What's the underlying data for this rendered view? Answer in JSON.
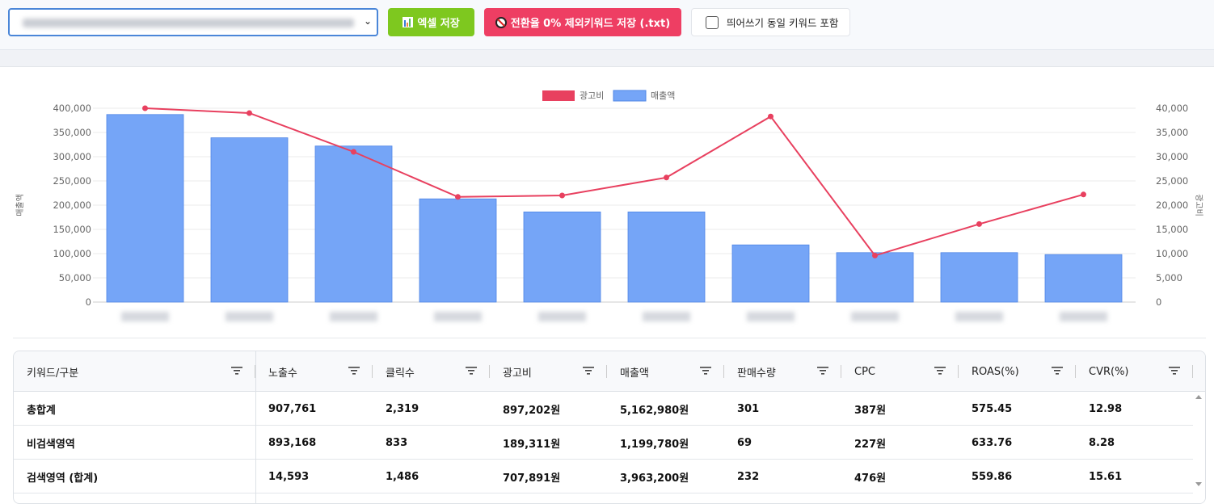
{
  "toolbar": {
    "select_value": "",
    "excel_button": "엑셀 저장",
    "excel_icon": "bar-chart-icon",
    "txt_button": "전환율 0% 제외키워드 저장 (.txt)",
    "txt_icon": "prohibited-icon",
    "checkbox_label": "띄어쓰기 동일 키워드 포함",
    "checkbox_checked": false
  },
  "chart_data": {
    "type": "bar+line",
    "categories": [
      "",
      "",
      "",
      "",
      "",
      "",
      "",
      "",
      "",
      ""
    ],
    "series": [
      {
        "name": "광고비",
        "type": "line",
        "axis": "right",
        "color": "#e8405f",
        "values": [
          40000,
          39000,
          31000,
          21700,
          22000,
          25700,
          38300,
          9600,
          16100,
          22200
        ]
      },
      {
        "name": "매출액",
        "type": "bar",
        "axis": "left",
        "color": "#75a5f7",
        "values": [
          387000,
          339000,
          322000,
          213000,
          186000,
          186000,
          118000,
          102000,
          102000,
          98000
        ]
      }
    ],
    "ylabel_left": "매출액",
    "ylabel_right": "광고비",
    "ylim_left": [
      0,
      400000
    ],
    "ylim_right": [
      0,
      40000
    ],
    "yticks_left": [
      "0",
      "50,000",
      "100,000",
      "150,000",
      "200,000",
      "250,000",
      "300,000",
      "350,000",
      "400,000"
    ],
    "yticks_right": [
      "0",
      "5,000",
      "10,000",
      "15,000",
      "20,000",
      "25,000",
      "30,000",
      "35,000",
      "40,000"
    ],
    "legend": "top-center",
    "grid": true
  },
  "table": {
    "columns": [
      "키워드/구분",
      "노출수",
      "클릭수",
      "광고비",
      "매출액",
      "판매수량",
      "CPC",
      "ROAS(%)",
      "CVR(%)"
    ],
    "rows": [
      [
        "총합계",
        "907,761",
        "2,319",
        "897,202원",
        "5,162,980원",
        "301",
        "387원",
        "575.45",
        "12.98"
      ],
      [
        "비검색영역",
        "893,168",
        "833",
        "189,311원",
        "1,199,780원",
        "69",
        "227원",
        "633.76",
        "8.28"
      ],
      [
        "검색영역 (합계)",
        "14,593",
        "1,486",
        "707,891원",
        "3,963,200원",
        "232",
        "476원",
        "559.86",
        "15.61"
      ]
    ]
  }
}
